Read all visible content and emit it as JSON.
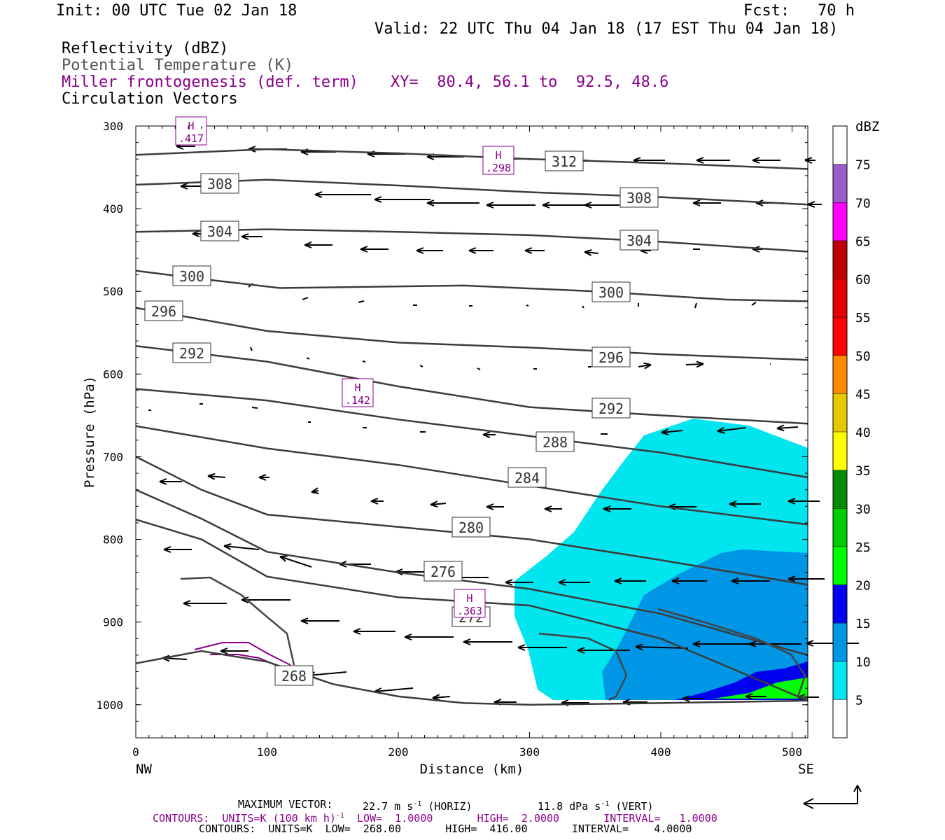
{
  "header": {
    "init": "Init: 00 UTC Tue 02 Jan 18",
    "fcst": "Fcst:   70 h",
    "valid": "Valid: 22 UTC Thu 04 Jan 18 (17 EST Thu 04 Jan 18)",
    "field1": "Reflectivity (dBZ)",
    "field2": "Potential Temperature (K)",
    "field3": "Miller frontogenesis (def. term)",
    "xy": "XY=  80.4, 56.1 to  92.5, 48.6",
    "field4": "Circulation Vectors"
  },
  "colors": {
    "purple": "#8b008b",
    "theta": "#3c3c3c",
    "cyan": "#00e5ee",
    "blue10": "#0096e6",
    "blue15": "#0000f0",
    "green20": "#00ff00"
  },
  "chart_data": {
    "type": "cross-section",
    "xlabel": "Distance (km)",
    "ylabel": "Pressure (hPa)",
    "x_ticks": [
      0,
      100,
      200,
      300,
      400,
      500
    ],
    "y_ticks": [
      300,
      400,
      500,
      600,
      700,
      800,
      900,
      1000
    ],
    "xlim": [
      0,
      512
    ],
    "ylim": [
      300,
      1040
    ],
    "left_end_label": "NW",
    "right_end_label": "SE",
    "colorbar": {
      "title": "dBZ",
      "levels": [
        5,
        10,
        15,
        20,
        25,
        30,
        35,
        40,
        45,
        50,
        55,
        60,
        65,
        70,
        75
      ],
      "colors": [
        "#ffffff",
        "#00e5ee",
        "#0096e6",
        "#0000f0",
        "#00ff00",
        "#00cc00",
        "#008b00",
        "#ffff00",
        "#e6c800",
        "#ff8c00",
        "#ff0000",
        "#e60000",
        "#c00000",
        "#ff00ff",
        "#9a5bc8",
        "#ffffff"
      ]
    },
    "theta_contours": [
      {
        "label": "312",
        "x": [
          0,
          100,
          200,
          300,
          400,
          512
        ],
        "p": [
          335,
          328,
          333,
          340,
          345,
          352
        ]
      },
      {
        "label": "308",
        "x": [
          0,
          100,
          200,
          300,
          400,
          512
        ],
        "p": [
          371,
          365,
          372,
          380,
          386,
          395
        ]
      },
      {
        "label": "304",
        "x": [
          0,
          100,
          200,
          300,
          400,
          512
        ],
        "p": [
          428,
          425,
          428,
          432,
          440,
          452
        ]
      },
      {
        "label": "300",
        "x": [
          0,
          50,
          110,
          250,
          350,
          450,
          512
        ],
        "p": [
          475,
          485,
          496,
          493,
          500,
          510,
          512
        ]
      },
      {
        "label": "296",
        "x": [
          0,
          100,
          200,
          300,
          400,
          512
        ],
        "p": [
          520,
          548,
          562,
          568,
          576,
          583
        ]
      },
      {
        "label": "292",
        "x": [
          0,
          100,
          200,
          300,
          400,
          512
        ],
        "p": [
          566,
          585,
          615,
          640,
          650,
          660
        ]
      },
      {
        "label": "288",
        "x": [
          0,
          100,
          200,
          300,
          400,
          512
        ],
        "p": [
          618,
          632,
          655,
          675,
          695,
          725
        ]
      },
      {
        "label": "284",
        "x": [
          0,
          100,
          200,
          300,
          400,
          512
        ],
        "p": [
          663,
          690,
          710,
          735,
          760,
          782
        ]
      },
      {
        "label": "280",
        "x": [
          0,
          50,
          100,
          200,
          300,
          400,
          512
        ],
        "p": [
          700,
          740,
          770,
          785,
          800,
          825,
          855
        ]
      },
      {
        "label": "276",
        "x": [
          0,
          50,
          100,
          200,
          300,
          400,
          512
        ],
        "p": [
          740,
          775,
          815,
          840,
          860,
          890,
          940
        ]
      },
      {
        "label": "272",
        "x": [
          0,
          50,
          100,
          200,
          300,
          400,
          512
        ],
        "p": [
          776,
          800,
          845,
          870,
          880,
          920,
          995
        ]
      },
      {
        "label": "268",
        "x": [
          0,
          50,
          100,
          150,
          200,
          250,
          300,
          400,
          512
        ],
        "p": [
          950,
          935,
          948,
          975,
          990,
          998,
          1000,
          998,
          995
        ]
      }
    ],
    "frontogenesis_maxima": [
      {
        "label": "H",
        "value": ".417",
        "x": 42,
        "p": 308
      },
      {
        "label": "H",
        "value": ".298",
        "x": 276,
        "p": 342
      },
      {
        "label": "H",
        "value": ".142",
        "x": 169,
        "p": 633
      },
      {
        "label": "H",
        "value": ".363",
        "x": 253,
        "p": 876
      }
    ],
    "footer": {
      "max_vector_label": "MAXIMUM VECTOR:",
      "max_horiz": "22.7 m s",
      "horiz_tag": "(HORIZ)",
      "max_vert": "11.8 dPa s",
      "vert_tag": "(VERT)",
      "purple_contours": "CONTOURS:  UNITS=K (100 km h)",
      "purple_range": "LOW=  1.0000       HIGH=  2.0000       INTERVAL=   1.0000",
      "black_contours": "CONTOURS:  UNITS=K  LOW=  268.00       HIGH=  416.00       INTERVAL=    4.0000",
      "exp": "-1"
    }
  }
}
